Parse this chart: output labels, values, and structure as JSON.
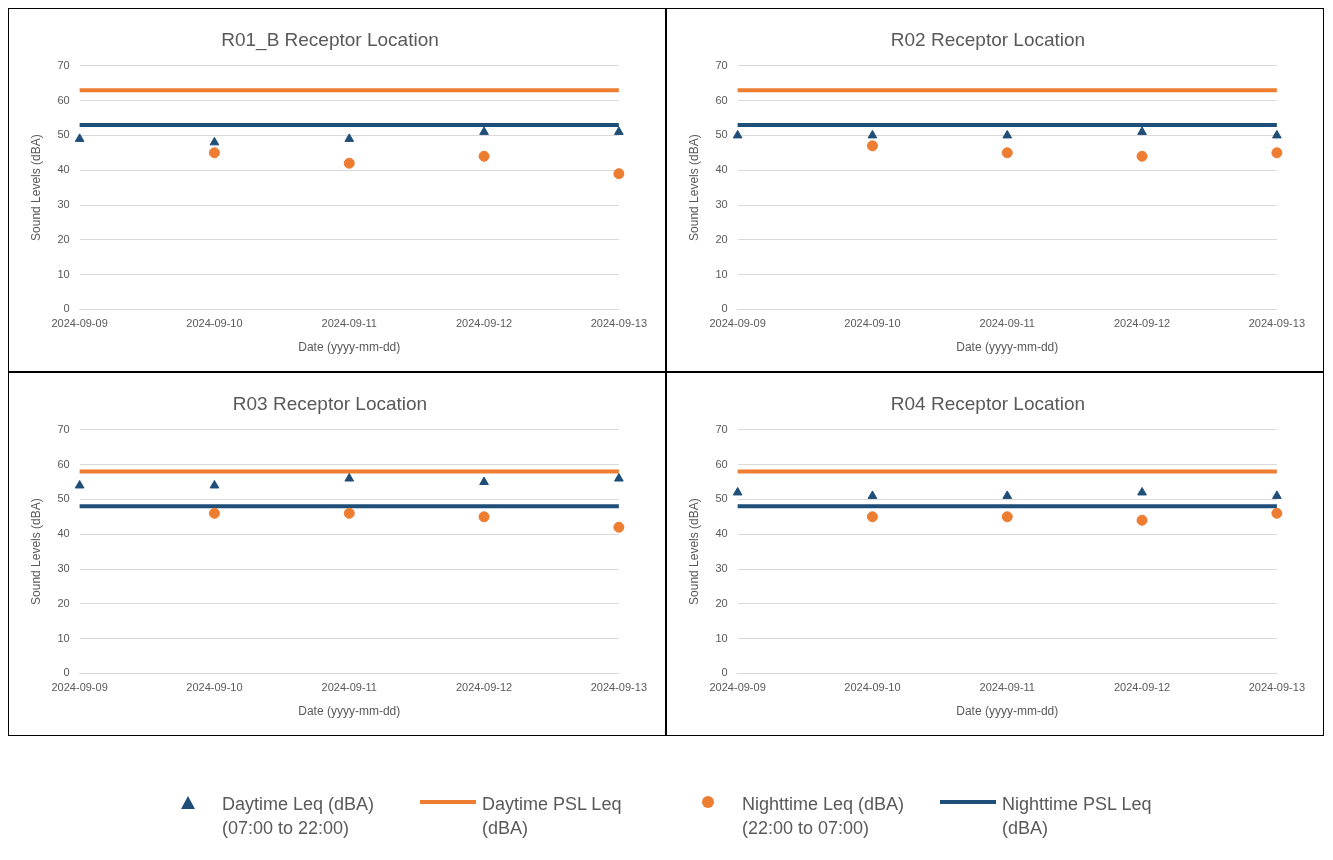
{
  "chart_data": [
    {
      "type": "scatter",
      "title": "R01_B Receptor Location",
      "xlabel": "Date (yyyy-mm-dd)",
      "ylabel": "Sound Levels (dBA)",
      "categories": [
        "2024-09-09",
        "2024-09-10",
        "2024-09-11",
        "2024-09-12",
        "2024-09-13"
      ],
      "ylim": [
        0,
        70
      ],
      "yticks": [
        0,
        10,
        20,
        30,
        40,
        50,
        60,
        70
      ],
      "grid": "y",
      "series": [
        {
          "marker": "triangle",
          "color": "#1f4e79",
          "values": [
            49,
            48,
            49,
            51,
            51
          ]
        },
        {
          "type": "line",
          "marker": "none",
          "color": "#ed7d31",
          "values": [
            63,
            63,
            63,
            63,
            63
          ]
        },
        {
          "marker": "circle",
          "color": "#ed7d31",
          "values": [
            null,
            45,
            42,
            44,
            39
          ]
        },
        {
          "type": "line",
          "marker": "none",
          "color": "#1f4e79",
          "values": [
            53,
            53,
            53,
            53,
            53
          ]
        }
      ]
    },
    {
      "type": "scatter",
      "title": "R02 Receptor Location",
      "xlabel": "Date (yyyy-mm-dd)",
      "ylabel": "Sound Levels (dBA)",
      "categories": [
        "2024-09-09",
        "2024-09-10",
        "2024-09-11",
        "2024-09-12",
        "2024-09-13"
      ],
      "ylim": [
        0,
        70
      ],
      "yticks": [
        0,
        10,
        20,
        30,
        40,
        50,
        60,
        70
      ],
      "grid": "y",
      "series": [
        {
          "marker": "triangle",
          "color": "#1f4e79",
          "values": [
            50,
            50,
            50,
            51,
            50
          ]
        },
        {
          "type": "line",
          "marker": "none",
          "color": "#ed7d31",
          "values": [
            63,
            63,
            63,
            63,
            63
          ]
        },
        {
          "marker": "circle",
          "color": "#ed7d31",
          "values": [
            null,
            47,
            45,
            44,
            45
          ]
        },
        {
          "type": "line",
          "marker": "none",
          "color": "#1f4e79",
          "values": [
            53,
            53,
            53,
            53,
            53
          ]
        }
      ]
    },
    {
      "type": "scatter",
      "title": "R03 Receptor Location",
      "xlabel": "Date (yyyy-mm-dd)",
      "ylabel": "Sound Levels (dBA)",
      "categories": [
        "2024-09-09",
        "2024-09-10",
        "2024-09-11",
        "2024-09-12",
        "2024-09-13"
      ],
      "ylim": [
        0,
        70
      ],
      "yticks": [
        0,
        10,
        20,
        30,
        40,
        50,
        60,
        70
      ],
      "grid": "y",
      "series": [
        {
          "marker": "triangle",
          "color": "#1f4e79",
          "values": [
            54,
            54,
            56,
            55,
            56
          ]
        },
        {
          "type": "line",
          "marker": "none",
          "color": "#ed7d31",
          "values": [
            58,
            58,
            58,
            58,
            58
          ]
        },
        {
          "marker": "circle",
          "color": "#ed7d31",
          "values": [
            null,
            46,
            46,
            45,
            42
          ]
        },
        {
          "type": "line",
          "marker": "none",
          "color": "#1f4e79",
          "values": [
            48,
            48,
            48,
            48,
            48
          ]
        }
      ]
    },
    {
      "type": "scatter",
      "title": "R04 Receptor Location",
      "xlabel": "Date (yyyy-mm-dd)",
      "ylabel": "Sound Levels (dBA)",
      "categories": [
        "2024-09-09",
        "2024-09-10",
        "2024-09-11",
        "2024-09-12",
        "2024-09-13"
      ],
      "ylim": [
        0,
        70
      ],
      "yticks": [
        0,
        10,
        20,
        30,
        40,
        50,
        60,
        70
      ],
      "grid": "y",
      "legend": "bottom",
      "series": [
        {
          "name": "Daytime Leq (dBA) (07:00 to 22:00)",
          "marker": "triangle",
          "color": "#1f4e79",
          "values": [
            52,
            51,
            51,
            52,
            51
          ]
        },
        {
          "name": "Daytime PSL Leq (dBA)",
          "type": "line",
          "marker": "none",
          "color": "#ed7d31",
          "values": [
            58,
            58,
            58,
            58,
            58
          ]
        },
        {
          "name": "Nighttime Leq (dBA) (22:00 to 07:00)",
          "marker": "circle",
          "color": "#ed7d31",
          "values": [
            null,
            45,
            45,
            44,
            46
          ]
        },
        {
          "name": "Nighttime PSL Leq (dBA)",
          "type": "line",
          "marker": "none",
          "color": "#1f4e79",
          "values": [
            48,
            48,
            48,
            48,
            48
          ]
        }
      ]
    }
  ]
}
